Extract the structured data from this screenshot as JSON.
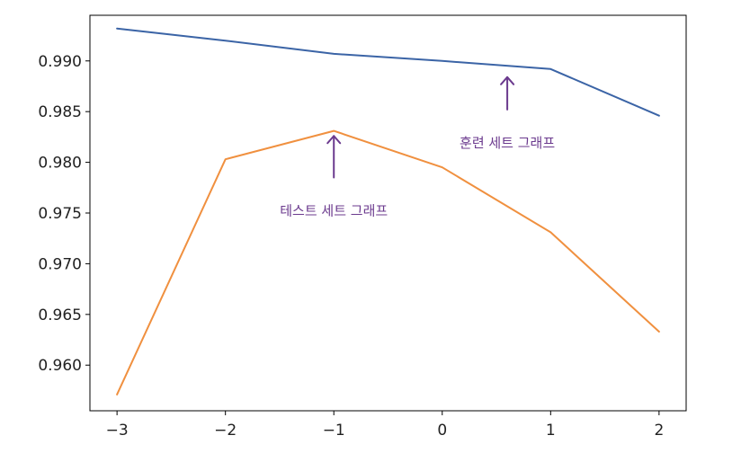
{
  "chart_data": {
    "type": "line",
    "title": "",
    "xlabel": "",
    "ylabel": "",
    "x": [
      -3,
      -2,
      -1,
      0,
      1,
      2
    ],
    "x_ticks": [
      -3,
      -2,
      -1,
      0,
      1,
      2
    ],
    "x_tick_labels": [
      "−3",
      "−2",
      "−1",
      "0",
      "1",
      "2"
    ],
    "y_ticks": [
      0.96,
      0.965,
      0.97,
      0.975,
      0.98,
      0.985,
      0.99
    ],
    "y_tick_labels": [
      "0.960",
      "0.965",
      "0.970",
      "0.975",
      "0.980",
      "0.985",
      "0.990"
    ],
    "xlim": [
      -3.25,
      2.25
    ],
    "ylim": [
      0.9555,
      0.9945
    ],
    "grid": false,
    "series": [
      {
        "values": [
          0.9932,
          0.992,
          0.9907,
          0.99,
          0.9892,
          0.9846
        ],
        "color": "#3b64a6"
      },
      {
        "values": [
          0.9571,
          0.9803,
          0.9831,
          0.9795,
          0.9731,
          0.9633
        ],
        "color": "#f0903f"
      }
    ],
    "annotations": [
      {
        "text": "훈련 세트 그래프",
        "x": 0.6,
        "y": 0.9884,
        "arrow_tail_y": 0.9852,
        "label_y": 0.982,
        "color": "#6b3a8e"
      },
      {
        "text": "테스트 세트 그래프",
        "x": -1.0,
        "y": 0.9826,
        "arrow_tail_y": 0.9785,
        "label_y": 0.9753,
        "color": "#6b3a8e"
      }
    ]
  }
}
